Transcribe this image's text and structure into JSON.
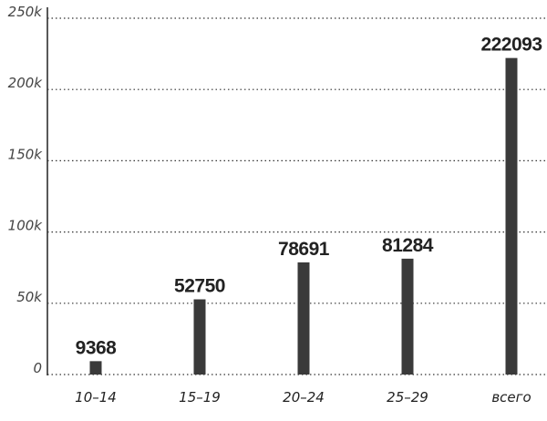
{
  "chart_data": {
    "type": "bar",
    "categories": [
      "10–14",
      "15–19",
      "20–24",
      "25–29",
      "всего"
    ],
    "values": [
      9368,
      52750,
      78691,
      81284,
      222093
    ],
    "color": "#3a3a3a",
    "ylim": [
      0,
      250000
    ],
    "yticks": [
      0,
      {
        "value": 50000,
        "label": "50k"
      },
      {
        "value": 100000,
        "label": "100k"
      },
      {
        "value": 150000,
        "label": "150k"
      },
      {
        "value": 200000,
        "label": "200k"
      },
      {
        "value": 250000,
        "label": "250k"
      }
    ],
    "grid": true
  }
}
